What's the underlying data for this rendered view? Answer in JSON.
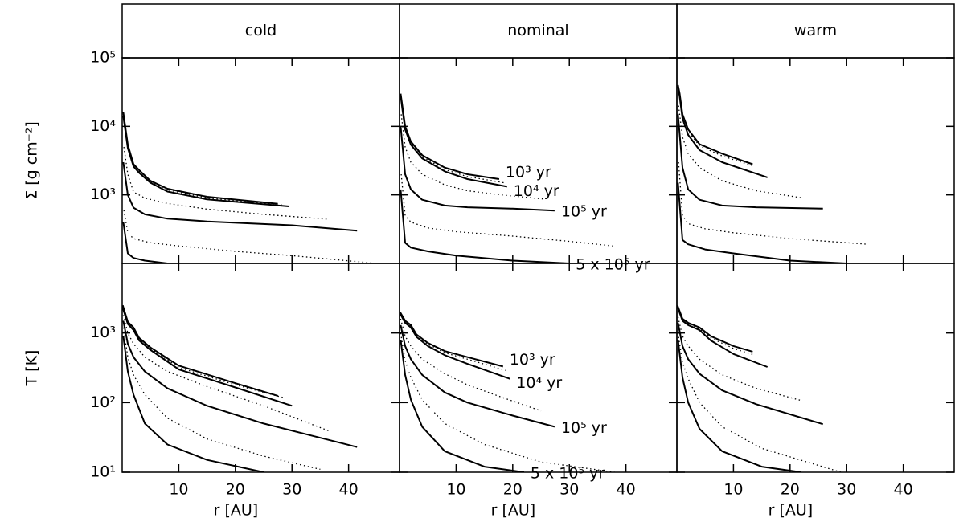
{
  "chart_data": [
    {
      "type": "line",
      "title": "cold",
      "ylabel": "Σ [g cm⁻²]",
      "log_y": true,
      "xlim": [
        0,
        49
      ],
      "ylim": [
        100,
        100000
      ],
      "yticks": [
        {
          "value": 100000,
          "label": "10⁵"
        },
        {
          "value": 10000,
          "label": "10⁴"
        },
        {
          "value": 1000,
          "label": "10³"
        }
      ],
      "series": [
        {
          "style": "solid",
          "color": "#000000",
          "x": [
            0.2,
            1,
            2,
            3,
            5,
            8,
            15,
            27.5
          ],
          "values": [
            16000,
            5400,
            2800,
            2300,
            1600,
            1230,
            940,
            740
          ]
        },
        {
          "style": "dotted",
          "color": "#000000",
          "x": [
            0.2,
            1,
            2,
            3,
            5,
            8,
            15,
            28.5
          ],
          "values": [
            15000,
            5100,
            2700,
            2200,
            1550,
            1180,
            900,
            710
          ]
        },
        {
          "style": "solid",
          "color": "#000000",
          "x": [
            0.2,
            1,
            2,
            3,
            5,
            8,
            15,
            29.5
          ],
          "values": [
            14000,
            4800,
            2600,
            2100,
            1500,
            1120,
            860,
            680
          ]
        },
        {
          "style": "dotted",
          "color": "#000000",
          "x": [
            0.3,
            1,
            2,
            4,
            8,
            15,
            25,
            36.6
          ],
          "values": [
            5000,
            2000,
            1100,
            900,
            750,
            620,
            520,
            440
          ]
        },
        {
          "style": "solid",
          "color": "#000000",
          "x": [
            0.2,
            1,
            2,
            4,
            8,
            15,
            30,
            41.5
          ],
          "values": [
            3000,
            1000,
            650,
            520,
            450,
            410,
            360,
            300
          ]
        },
        {
          "style": "dotted",
          "color": "#000000",
          "x": [
            0.3,
            1,
            2,
            5,
            10,
            20,
            30,
            45
          ],
          "values": [
            600,
            280,
            230,
            200,
            180,
            150,
            130,
            100
          ]
        },
        {
          "style": "solid",
          "color": "#000000",
          "x": [
            0.2,
            1,
            2,
            4,
            8,
            15,
            25
          ],
          "values": [
            400,
            140,
            120,
            110,
            100,
            90,
            80
          ]
        }
      ]
    },
    {
      "type": "line",
      "title": "nominal",
      "log_y": true,
      "xlim": [
        0,
        49
      ],
      "ylim": [
        100,
        100000
      ],
      "series": [
        {
          "name": "10³ yr",
          "style": "solid",
          "color": "#000000",
          "x": [
            0.2,
            0.5,
            1,
            2,
            4,
            8,
            12,
            17.6
          ],
          "values": [
            30000,
            20000,
            10000,
            6000,
            3800,
            2500,
            2000,
            1700
          ]
        },
        {
          "style": "dotted",
          "color": "#000000",
          "x": [
            0.2,
            0.5,
            1,
            2,
            4,
            8,
            12,
            18.5
          ],
          "values": [
            29000,
            19000,
            9500,
            5700,
            3600,
            2350,
            1850,
            1500
          ]
        },
        {
          "name": "10⁴ yr",
          "style": "solid",
          "color": "#000000",
          "x": [
            0.2,
            0.5,
            1,
            2,
            4,
            8,
            12,
            19
          ],
          "values": [
            28000,
            18000,
            9000,
            5400,
            3400,
            2200,
            1700,
            1320
          ]
        },
        {
          "style": "dotted",
          "color": "#000000",
          "x": [
            0.3,
            1,
            2,
            4,
            8,
            12,
            18,
            25.5
          ],
          "values": [
            15000,
            5000,
            3000,
            2000,
            1400,
            1150,
            1000,
            870
          ]
        },
        {
          "name": "10⁵ yr",
          "style": "solid",
          "color": "#000000",
          "x": [
            0.2,
            1,
            2,
            4,
            8,
            12,
            20,
            27.4
          ],
          "values": [
            10000,
            2000,
            1200,
            850,
            700,
            660,
            630,
            590
          ]
        },
        {
          "style": "dotted",
          "color": "#000000",
          "x": [
            0.3,
            1,
            2,
            5,
            10,
            20,
            30,
            37.7
          ],
          "values": [
            2000,
            500,
            400,
            330,
            290,
            250,
            210,
            180
          ]
        },
        {
          "name": "5 x 10⁵ yr",
          "style": "solid",
          "color": "#000000",
          "x": [
            0.2,
            1,
            2,
            5,
            10,
            20,
            30
          ],
          "values": [
            1200,
            200,
            170,
            150,
            130,
            110,
            100
          ]
        }
      ]
    },
    {
      "type": "line",
      "title": "warm",
      "log_y": true,
      "xlim": [
        0,
        49
      ],
      "ylim": [
        100,
        100000
      ],
      "series": [
        {
          "style": "solid",
          "color": "#000000",
          "x": [
            0.2,
            0.5,
            1,
            2,
            4,
            8,
            13.4
          ],
          "values": [
            40000,
            30000,
            15000,
            9000,
            5500,
            4000,
            2800
          ]
        },
        {
          "style": "dotted",
          "color": "#000000",
          "x": [
            0.2,
            0.5,
            1,
            2,
            4,
            8,
            13.8
          ],
          "values": [
            39000,
            28500,
            14000,
            8500,
            5200,
            3700,
            2600
          ]
        },
        {
          "style": "solid",
          "color": "#000000",
          "x": [
            0.2,
            0.5,
            1,
            2,
            4,
            8,
            16
          ],
          "values": [
            38000,
            27000,
            13000,
            7500,
            4500,
            3000,
            1800
          ]
        },
        {
          "style": "dotted",
          "color": "#000000",
          "x": [
            0.3,
            1,
            2,
            4,
            8,
            14,
            22
          ],
          "values": [
            20000,
            7000,
            4000,
            2500,
            1600,
            1150,
            910
          ]
        },
        {
          "style": "solid",
          "color": "#000000",
          "x": [
            0.2,
            1,
            2,
            4,
            8,
            14,
            25.8
          ],
          "values": [
            15000,
            2500,
            1200,
            850,
            700,
            660,
            630
          ]
        },
        {
          "style": "dotted",
          "color": "#000000",
          "x": [
            0.3,
            1,
            2,
            5,
            10,
            20,
            33.8
          ],
          "values": [
            3000,
            500,
            380,
            320,
            280,
            230,
            190
          ]
        },
        {
          "style": "solid",
          "color": "#000000",
          "x": [
            0.2,
            1,
            2,
            5,
            10,
            20,
            30
          ],
          "values": [
            1500,
            220,
            190,
            160,
            140,
            110,
            100
          ]
        }
      ]
    },
    {
      "type": "line",
      "ylabel": "T [K]",
      "xlabel": "r [AU]",
      "log_y": true,
      "xlim": [
        0,
        49
      ],
      "ylim": [
        10,
        10000
      ],
      "xticks": [
        10,
        20,
        30,
        40
      ],
      "yticks": [
        {
          "value": 1000,
          "label": "10³"
        },
        {
          "value": 100,
          "label": "10²"
        },
        {
          "value": 10,
          "label": "10¹"
        }
      ],
      "series": [
        {
          "style": "solid",
          "color": "#000000",
          "x": [
            0.1,
            1,
            2,
            3,
            5,
            10,
            20,
            27.5
          ],
          "values": [
            2500,
            1450,
            1200,
            850,
            620,
            340,
            190,
            125
          ]
        },
        {
          "style": "dotted",
          "color": "#000000",
          "x": [
            0.1,
            1,
            2,
            3,
            5,
            10,
            20,
            28.5
          ],
          "values": [
            2400,
            1400,
            1150,
            820,
            600,
            320,
            180,
            118
          ]
        },
        {
          "style": "solid",
          "color": "#000000",
          "x": [
            0.1,
            1,
            2,
            3,
            5,
            10,
            20,
            30
          ],
          "values": [
            2300,
            1350,
            1100,
            780,
            570,
            300,
            165,
            90
          ]
        },
        {
          "style": "dotted",
          "color": "#000000",
          "x": [
            0.2,
            1,
            2,
            4,
            8,
            15,
            25,
            36.6
          ],
          "values": [
            1800,
            1000,
            700,
            450,
            280,
            170,
            90,
            39
          ]
        },
        {
          "style": "solid",
          "color": "#000000",
          "x": [
            0.2,
            1,
            2,
            4,
            8,
            15,
            25,
            41.5
          ],
          "values": [
            1500,
            700,
            450,
            280,
            160,
            90,
            50,
            23
          ]
        },
        {
          "style": "dotted",
          "color": "#000000",
          "x": [
            0.2,
            1,
            2,
            4,
            8,
            15,
            25,
            35
          ],
          "values": [
            1200,
            450,
            250,
            130,
            60,
            30,
            17,
            11
          ]
        },
        {
          "style": "solid",
          "color": "#000000",
          "x": [
            0.2,
            1,
            2,
            4,
            8,
            15,
            25
          ],
          "values": [
            900,
            280,
            130,
            50,
            25,
            15,
            10
          ]
        }
      ]
    },
    {
      "type": "line",
      "xlabel": "r [AU]",
      "log_y": true,
      "xlim": [
        0,
        49
      ],
      "ylim": [
        10,
        10000
      ],
      "xticks": [
        10,
        20,
        30,
        40
      ],
      "series": [
        {
          "name": "10³ yr",
          "style": "solid",
          "color": "#000000",
          "x": [
            0.1,
            1,
            2,
            3,
            5,
            8,
            12,
            18.3
          ],
          "values": [
            2000,
            1500,
            1300,
            950,
            720,
            550,
            450,
            330
          ]
        },
        {
          "style": "dotted",
          "color": "#000000",
          "x": [
            0.1,
            1,
            2,
            3,
            5,
            8,
            12,
            18.8
          ],
          "values": [
            1950,
            1450,
            1250,
            920,
            690,
            520,
            420,
            290
          ]
        },
        {
          "name": "10⁴ yr",
          "style": "solid",
          "color": "#000000",
          "x": [
            0.1,
            1,
            2,
            3,
            5,
            8,
            12,
            19.5
          ],
          "values": [
            1900,
            1400,
            1200,
            880,
            650,
            480,
            360,
            220
          ]
        },
        {
          "style": "dotted",
          "color": "#000000",
          "x": [
            0.2,
            1,
            2,
            4,
            8,
            12,
            18,
            25
          ],
          "values": [
            1600,
            900,
            650,
            420,
            260,
            180,
            120,
            76
          ]
        },
        {
          "name": "10⁵ yr",
          "style": "solid",
          "color": "#000000",
          "x": [
            0.2,
            1,
            2,
            4,
            8,
            12,
            20,
            27.4
          ],
          "values": [
            1300,
            650,
            420,
            250,
            140,
            100,
            65,
            45
          ]
        },
        {
          "style": "dotted",
          "color": "#000000",
          "x": [
            0.2,
            1,
            2,
            4,
            8,
            15,
            25,
            38
          ],
          "values": [
            1000,
            400,
            230,
            110,
            50,
            25,
            14,
            10
          ]
        },
        {
          "name": "5 x 10⁵ yr",
          "style": "solid",
          "color": "#000000",
          "x": [
            0.2,
            1,
            2,
            4,
            8,
            15,
            22
          ],
          "values": [
            800,
            250,
            110,
            45,
            20,
            12,
            10
          ]
        }
      ]
    },
    {
      "type": "line",
      "xlabel": "r [AU]",
      "log_y": true,
      "xlim": [
        0,
        49
      ],
      "ylim": [
        10,
        10000
      ],
      "xticks": [
        10,
        20,
        30,
        40
      ],
      "series": [
        {
          "style": "solid",
          "color": "#000000",
          "x": [
            0.1,
            1,
            2,
            4,
            6,
            10,
            13.4
          ],
          "values": [
            2500,
            1600,
            1400,
            1200,
            900,
            650,
            540
          ]
        },
        {
          "style": "dotted",
          "color": "#000000",
          "x": [
            0.1,
            1,
            2,
            4,
            6,
            10,
            13.8
          ],
          "values": [
            2450,
            1550,
            1350,
            1150,
            850,
            600,
            480
          ]
        },
        {
          "style": "solid",
          "color": "#000000",
          "x": [
            0.1,
            1,
            2,
            4,
            6,
            10,
            16
          ],
          "values": [
            2400,
            1500,
            1300,
            1100,
            780,
            500,
            325
          ]
        },
        {
          "style": "dotted",
          "color": "#000000",
          "x": [
            0.2,
            1,
            2,
            4,
            8,
            14,
            22
          ],
          "values": [
            1700,
            900,
            650,
            420,
            250,
            160,
            107
          ]
        },
        {
          "style": "solid",
          "color": "#000000",
          "x": [
            0.2,
            1,
            2,
            4,
            8,
            14,
            25.8
          ],
          "values": [
            1400,
            650,
            420,
            260,
            150,
            95,
            49
          ]
        },
        {
          "style": "dotted",
          "color": "#000000",
          "x": [
            0.2,
            1,
            2,
            4,
            8,
            15,
            29
          ],
          "values": [
            1000,
            380,
            220,
            100,
            45,
            22,
            10
          ]
        },
        {
          "style": "solid",
          "color": "#000000",
          "x": [
            0.2,
            1,
            2,
            4,
            8,
            15,
            22
          ],
          "values": [
            800,
            230,
            100,
            42,
            20,
            12,
            10
          ]
        }
      ]
    }
  ]
}
